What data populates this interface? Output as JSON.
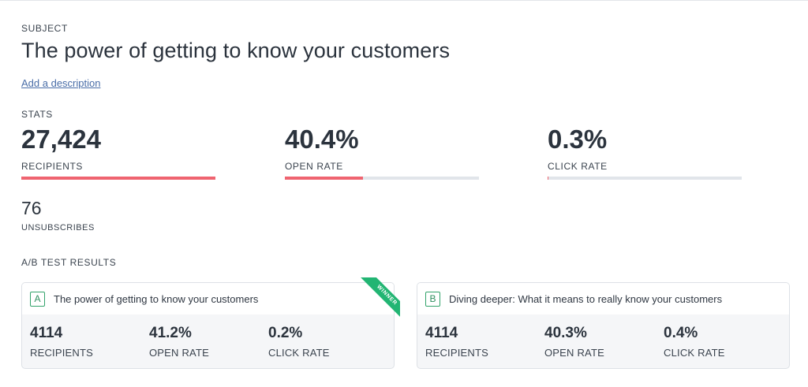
{
  "subject": {
    "label": "SUBJECT",
    "title": "The power of getting to know your customers",
    "add_description": "Add a description"
  },
  "stats": {
    "label": "STATS",
    "items": [
      {
        "value": "27,424",
        "label": "RECIPIENTS",
        "fill_fraction": 1.0
      },
      {
        "value": "40.4%",
        "label": "OPEN RATE",
        "fill_fraction": 0.404
      },
      {
        "value": "0.3%",
        "label": "CLICK RATE",
        "fill_fraction": 0.003
      }
    ],
    "unsubscribes": {
      "value": "76",
      "label": "UNSUBSCRIBES"
    }
  },
  "ab_test": {
    "label": "A/B TEST RESULTS",
    "winner_label": "WINNER",
    "variants": [
      {
        "letter": "A",
        "subject": "The power of getting to know your customers",
        "winner": true,
        "metrics": [
          {
            "value": "4114",
            "label": "RECIPIENTS"
          },
          {
            "value": "41.2%",
            "label": "OPEN RATE"
          },
          {
            "value": "0.2%",
            "label": "CLICK RATE"
          }
        ]
      },
      {
        "letter": "B",
        "subject": "Diving deeper: What it means to really know your customers",
        "winner": false,
        "metrics": [
          {
            "value": "4114",
            "label": "RECIPIENTS"
          },
          {
            "value": "40.3%",
            "label": "OPEN RATE"
          },
          {
            "value": "0.4%",
            "label": "CLICK RATE"
          }
        ]
      }
    ]
  },
  "colors": {
    "bar_fill": "#ef6470",
    "bar_track": "#e1e5ea",
    "winner_green": "#22b573"
  }
}
